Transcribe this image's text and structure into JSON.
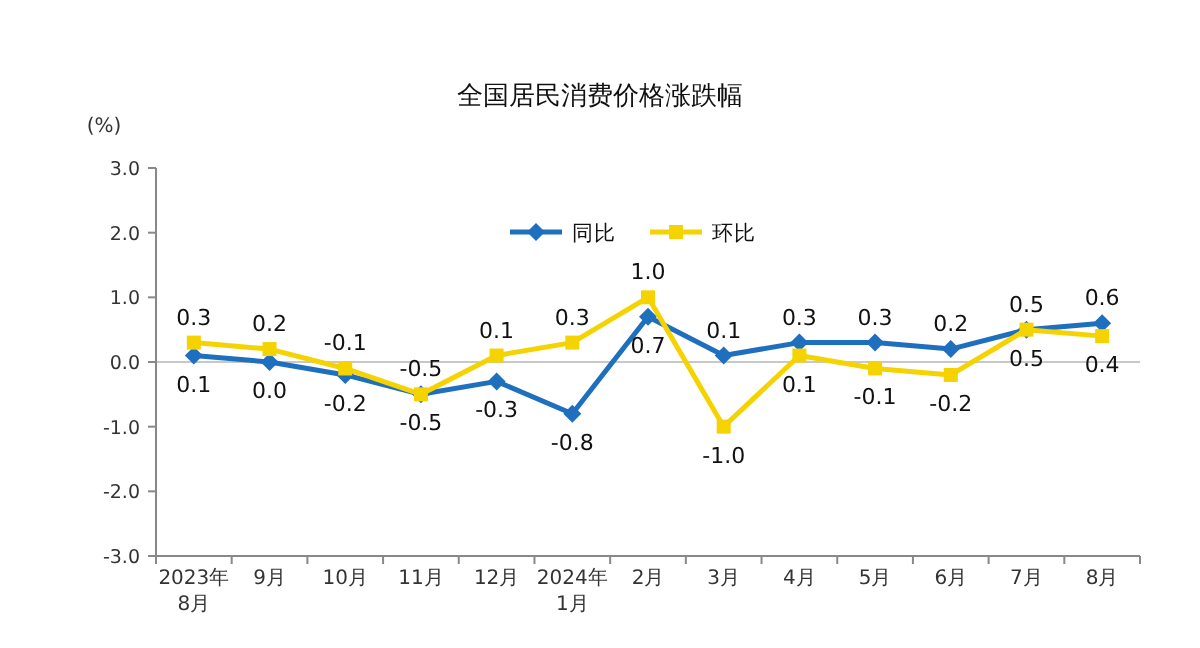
{
  "chart_data": {
    "type": "line",
    "title": "全国居民消费价格涨跌幅",
    "ylabel": "(%)",
    "categories": [
      "2023年\n8月",
      "9月",
      "10月",
      "11月",
      "12月",
      "2024年\n1月",
      "2月",
      "3月",
      "4月",
      "5月",
      "6月",
      "7月",
      "8月"
    ],
    "series": [
      {
        "name": "同比",
        "color": "#1f6fbf",
        "marker": "diamond",
        "values": [
          0.1,
          0.0,
          -0.2,
          -0.5,
          -0.3,
          -0.8,
          0.7,
          0.1,
          0.3,
          0.3,
          0.2,
          0.5,
          0.6
        ],
        "value_labels": [
          "0.1",
          "0.0",
          "-0.2",
          "-0.5",
          "-0.3",
          "-0.8",
          "0.7",
          "0.1",
          "0.3",
          "0.3",
          "0.2",
          "0.5",
          "0.6"
        ]
      },
      {
        "name": "环比",
        "color": "#f5d300",
        "marker": "square",
        "values": [
          0.3,
          0.2,
          -0.1,
          -0.5,
          0.1,
          0.3,
          1.0,
          -1.0,
          0.1,
          -0.1,
          -0.2,
          0.5,
          0.4
        ],
        "value_labels": [
          "0.3",
          "0.2",
          "-0.1",
          "-0.5",
          "0.1",
          "0.3",
          "1.0",
          "-1.0",
          "0.1",
          "-0.1",
          "-0.2",
          "0.5",
          "0.4"
        ]
      }
    ],
    "ylim": [
      -3,
      3
    ],
    "yticks": [
      {
        "value": -3,
        "label": "-3.0"
      },
      {
        "value": -2,
        "label": "-2.0"
      },
      {
        "value": -1,
        "label": "-1.0"
      },
      {
        "value": 0,
        "label": "0.0"
      },
      {
        "value": 1,
        "label": "1.0"
      },
      {
        "value": 2,
        "label": "2.0"
      },
      {
        "value": 3,
        "label": "3.0"
      }
    ],
    "ref_lines": [
      {
        "axis": "y",
        "value": 0,
        "color": "#c8c8c8"
      }
    ],
    "grid": false,
    "legend": "top",
    "line_style": "solid"
  }
}
